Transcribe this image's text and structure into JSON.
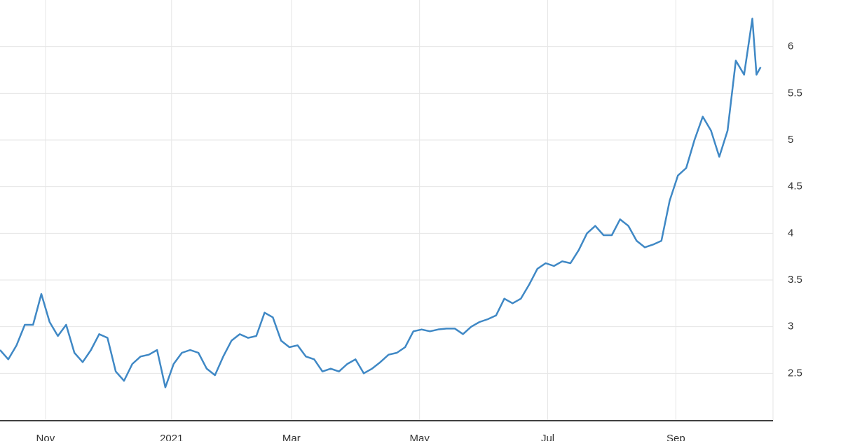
{
  "chart_data": {
    "type": "line",
    "x": [
      0,
      4,
      8,
      12,
      16,
      20,
      24,
      28,
      32,
      36,
      40,
      44,
      48,
      52,
      56,
      60,
      64,
      68,
      72,
      76,
      80,
      84,
      88,
      92,
      96,
      100,
      104,
      108,
      112,
      116,
      120,
      124,
      128,
      132,
      136,
      140,
      144,
      148,
      152,
      156,
      160,
      164,
      168,
      172,
      176,
      180,
      184,
      188,
      192,
      196,
      200,
      204,
      208,
      212,
      216,
      220,
      224,
      228,
      232,
      236,
      240,
      244,
      248,
      252,
      256,
      260,
      264,
      268,
      272,
      276,
      280,
      284,
      288,
      292,
      296,
      300,
      304,
      308,
      312,
      316,
      320,
      324,
      328,
      332,
      336,
      340,
      344,
      348,
      352,
      356,
      360,
      364,
      366,
      368
    ],
    "series": [
      {
        "color": "#3f88c5",
        "values": [
          2.75,
          2.65,
          2.8,
          3.02,
          3.02,
          3.35,
          3.05,
          2.9,
          3.02,
          2.72,
          2.62,
          2.75,
          2.92,
          2.88,
          2.52,
          2.42,
          2.6,
          2.68,
          2.7,
          2.75,
          2.35,
          2.6,
          2.72,
          2.75,
          2.72,
          2.55,
          2.48,
          2.68,
          2.85,
          2.92,
          2.88,
          2.9,
          3.15,
          3.1,
          2.85,
          2.78,
          2.8,
          2.68,
          2.65,
          2.52,
          2.55,
          2.52,
          2.6,
          2.65,
          2.5,
          2.55,
          2.62,
          2.7,
          2.72,
          2.78,
          2.95,
          2.97,
          2.95,
          2.97,
          2.98,
          2.98,
          2.92,
          3.0,
          3.05,
          3.08,
          3.12,
          3.3,
          3.25,
          3.3,
          3.45,
          3.62,
          3.68,
          3.65,
          3.7,
          3.68,
          3.82,
          4.0,
          4.08,
          3.98,
          3.98,
          4.15,
          4.08,
          3.92,
          3.85,
          3.88,
          3.92,
          4.35,
          4.62,
          4.7,
          5.0,
          5.25,
          5.1,
          4.82,
          5.1,
          5.85,
          5.7,
          6.3,
          5.7,
          5.78
        ]
      }
    ],
    "xlim": [
      0,
      374
    ],
    "xticks": [
      {
        "value": 22,
        "label": "Nov"
      },
      {
        "value": 83,
        "label": "2021"
      },
      {
        "value": 141,
        "label": "Mar"
      },
      {
        "value": 203,
        "label": "May"
      },
      {
        "value": 265,
        "label": "Jul"
      },
      {
        "value": 327,
        "label": "Sep"
      }
    ],
    "ylim": [
      2,
      6.5
    ],
    "yticks": [
      2.5,
      3,
      3.5,
      4,
      4.5,
      5,
      5.5,
      6
    ],
    "grid": true
  }
}
